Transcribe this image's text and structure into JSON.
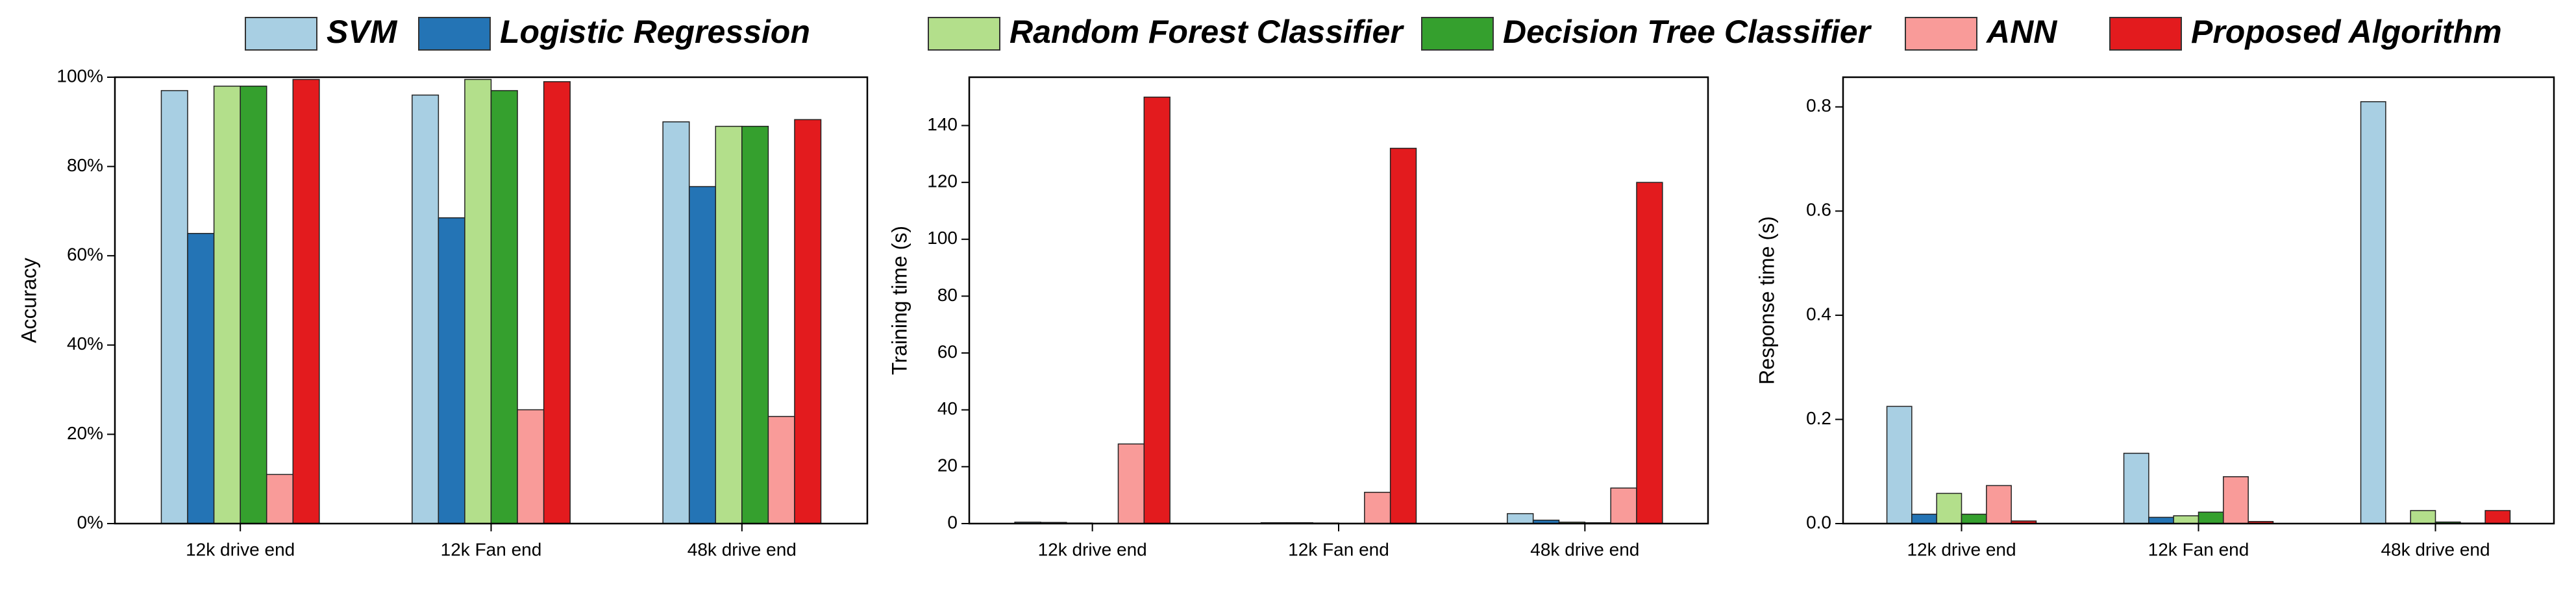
{
  "chart_data": [
    {
      "type": "bar",
      "y_label": "Accuracy",
      "categories": [
        "12k drive end",
        "12k Fan end",
        "48k drive end"
      ],
      "ylim": [
        0,
        100
      ],
      "yticks": [
        {
          "value": 0,
          "label": "0%"
        },
        {
          "value": 20,
          "label": "20%"
        },
        {
          "value": 40,
          "label": "40%"
        },
        {
          "value": 60,
          "label": "60%"
        },
        {
          "value": 80,
          "label": "80%"
        },
        {
          "value": 100,
          "label": "100%"
        }
      ],
      "series": [
        {
          "name": "SVM",
          "color": "#a8cfe3",
          "values": [
            97,
            96,
            90
          ]
        },
        {
          "name": "Logistic Regression",
          "color": "#2474b5",
          "values": [
            65,
            68.5,
            75.5
          ]
        },
        {
          "name": "Random Forest Classifier",
          "color": "#b3df8b",
          "values": [
            98,
            99.5,
            89
          ]
        },
        {
          "name": "Decision Tree Classifier",
          "color": "#35a02e",
          "values": [
            98,
            97,
            89
          ]
        },
        {
          "name": "ANN",
          "color": "#f99b99",
          "values": [
            11,
            25.5,
            24
          ]
        },
        {
          "name": "Proposed Algorithm",
          "color": "#e31b1e",
          "values": [
            99.5,
            99,
            90.5
          ]
        }
      ]
    },
    {
      "type": "bar",
      "y_label": "Training time (s)",
      "categories": [
        "12k drive end",
        "12k Fan end",
        "48k drive end"
      ],
      "ylim": [
        0,
        157
      ],
      "yticks": [
        0,
        20,
        40,
        60,
        80,
        100,
        120,
        140
      ],
      "series": [
        {
          "name": "SVM",
          "color": "#a8cfe3",
          "values": [
            0.5,
            0.3,
            3.5
          ]
        },
        {
          "name": "Logistic Regression",
          "color": "#2474b5",
          "values": [
            0.4,
            0.3,
            1.2
          ]
        },
        {
          "name": "Random Forest Classifier",
          "color": "#b3df8b",
          "values": [
            0.2,
            0.2,
            0.5
          ]
        },
        {
          "name": "Decision Tree Classifier",
          "color": "#35a02e",
          "values": [
            0.1,
            0.1,
            0.3
          ]
        },
        {
          "name": "ANN",
          "color": "#f99b99",
          "values": [
            28,
            11,
            12.5
          ]
        },
        {
          "name": "Proposed Algorithm",
          "color": "#e31b1e",
          "values": [
            150,
            132,
            120
          ]
        }
      ]
    },
    {
      "type": "bar",
      "y_label": "Response time (s)",
      "categories": [
        "12k drive end",
        "12k Fan end",
        "48k drive end"
      ],
      "ylim": [
        0,
        0.857
      ],
      "yticks": [
        {
          "value": 0,
          "label": "0.0"
        },
        0.2,
        0.4,
        0.6,
        0.8
      ],
      "series": [
        {
          "name": "SVM",
          "color": "#a8cfe3",
          "values": [
            0.225,
            0.135,
            0.81
          ]
        },
        {
          "name": "Logistic Regression",
          "color": "#2474b5",
          "values": [
            0.018,
            0.012,
            0.001
          ]
        },
        {
          "name": "Random Forest Classifier",
          "color": "#b3df8b",
          "values": [
            0.058,
            0.015,
            0.025
          ]
        },
        {
          "name": "Decision Tree Classifier",
          "color": "#35a02e",
          "values": [
            0.018,
            0.022,
            0.003
          ]
        },
        {
          "name": "ANN",
          "color": "#f99b99",
          "values": [
            0.073,
            0.09,
            0.001
          ]
        },
        {
          "name": "Proposed Algorithm",
          "color": "#e31b1e",
          "values": [
            0.005,
            0.004,
            0.025
          ]
        }
      ]
    }
  ]
}
